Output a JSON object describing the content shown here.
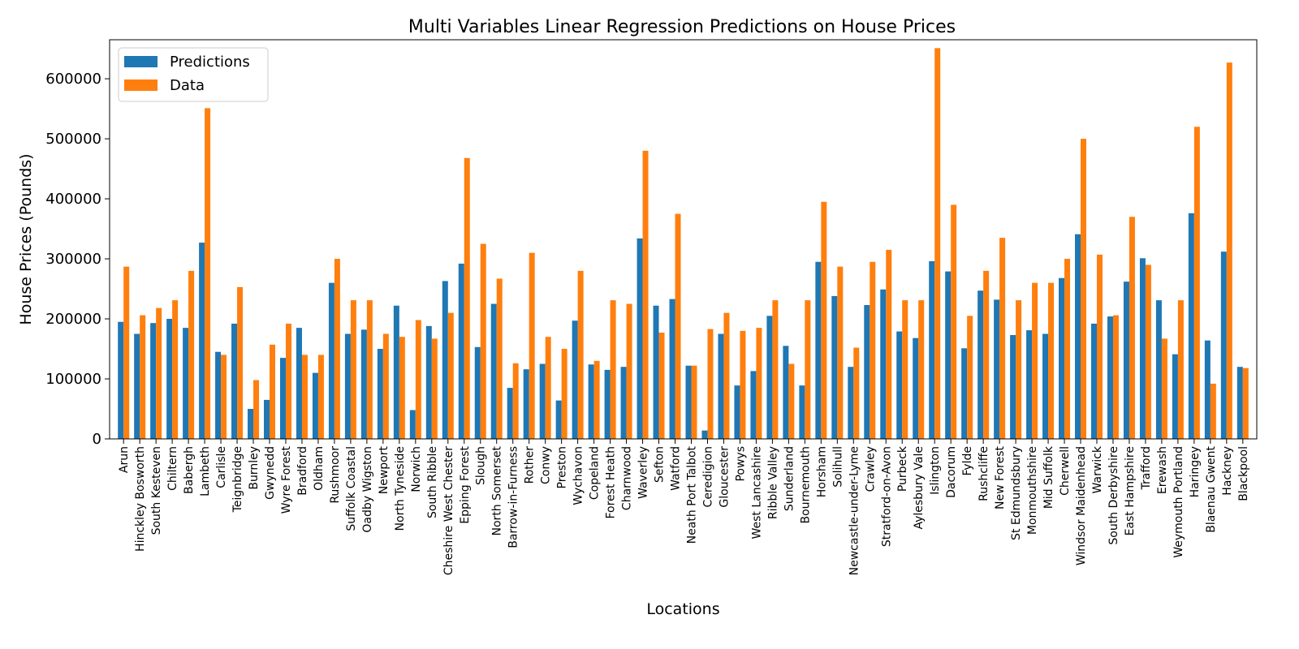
{
  "chart_data": {
    "type": "bar",
    "title": "Multi Variables Linear Regression Predictions on House Prices",
    "xlabel": "Locations",
    "ylabel": "House Prices (Pounds)",
    "ylim": [
      0,
      665000
    ],
    "yticks": [
      0,
      100000,
      200000,
      300000,
      400000,
      500000,
      600000
    ],
    "ytick_labels": [
      "0",
      "100000",
      "200000",
      "300000",
      "400000",
      "500000",
      "600000"
    ],
    "legend_position": "top-left",
    "colors": {
      "Predictions": "#1f77b4",
      "Data": "#ff7f0e"
    },
    "categories": [
      "Arun",
      "Hinckley Bosworth",
      "South Kesteven",
      "Chiltern",
      "Babergh",
      "Lambeth",
      "Carlisle",
      "Teignbridge",
      "Burnley",
      "Gwynedd",
      "Wyre Forest",
      "Bradford",
      "Oldham",
      "Rushmoor",
      "Suffolk Coastal",
      "Oadby Wigston",
      "Newport",
      "North Tyneside",
      "Norwich",
      "South Ribble",
      "Cheshire West Chester",
      "Epping Forest",
      "Slough",
      "North Somerset",
      "Barrow-in-Furness",
      "Rother",
      "Conwy",
      "Preston",
      "Wychavon",
      "Copeland",
      "Forest Heath",
      "Charnwood",
      "Waverley",
      "Sefton",
      "Watford",
      "Neath Port Talbot",
      "Ceredigion",
      "Gloucester",
      "Powys",
      "West Lancashire",
      "Ribble Valley",
      "Sunderland",
      "Bournemouth",
      "Horsham",
      "Solihull",
      "Newcastle-under-Lyme",
      "Crawley",
      "Stratford-on-Avon",
      "Purbeck",
      "Aylesbury Vale",
      "Islington",
      "Dacorum",
      "Fylde",
      "Rushcliffe",
      "New Forest",
      "St Edmundsbury",
      "Monmouthshire",
      "Mid Suffolk",
      "Cherwell",
      "Windsor Maidenhead",
      "Warwick",
      "South Derbyshire",
      "East Hampshire",
      "Trafford",
      "Erewash",
      "Weymouth Portland",
      "Haringey",
      "Blaenau Gwent",
      "Hackney",
      "Blackpool"
    ],
    "series": [
      {
        "name": "Predictions",
        "values": [
          195000,
          175000,
          193000,
          200000,
          185000,
          327000,
          145000,
          192000,
          50000,
          65000,
          135000,
          185000,
          110000,
          260000,
          175000,
          182000,
          150000,
          222000,
          48000,
          188000,
          263000,
          292000,
          153000,
          225000,
          85000,
          116000,
          125000,
          64000,
          197000,
          124000,
          115000,
          120000,
          334000,
          222000,
          233000,
          122000,
          14000,
          175000,
          89000,
          113000,
          205000,
          155000,
          89000,
          295000,
          238000,
          120000,
          223000,
          249000,
          179000,
          168000,
          296000,
          279000,
          151000,
          247000,
          232000,
          173000,
          181000,
          175000,
          268000,
          341000,
          192000,
          204000,
          262000,
          301000,
          231000,
          141000,
          376000,
          164000,
          312000,
          120000
        ]
      },
      {
        "name": "Data",
        "values": [
          287000,
          206000,
          218000,
          231000,
          280000,
          551000,
          140000,
          253000,
          98000,
          157000,
          192000,
          140000,
          140000,
          300000,
          231000,
          231000,
          175000,
          170000,
          198000,
          167000,
          210000,
          468000,
          325000,
          267000,
          126000,
          310000,
          170000,
          150000,
          280000,
          130000,
          231000,
          225000,
          480000,
          177000,
          375000,
          122000,
          183000,
          210000,
          180000,
          185000,
          231000,
          125000,
          231000,
          395000,
          287000,
          152000,
          295000,
          315000,
          231000,
          231000,
          651000,
          390000,
          205000,
          280000,
          335000,
          231000,
          260000,
          260000,
          300000,
          500000,
          307000,
          206000,
          370000,
          290000,
          167000,
          231000,
          520000,
          92000,
          627000,
          118000
        ]
      }
    ]
  }
}
